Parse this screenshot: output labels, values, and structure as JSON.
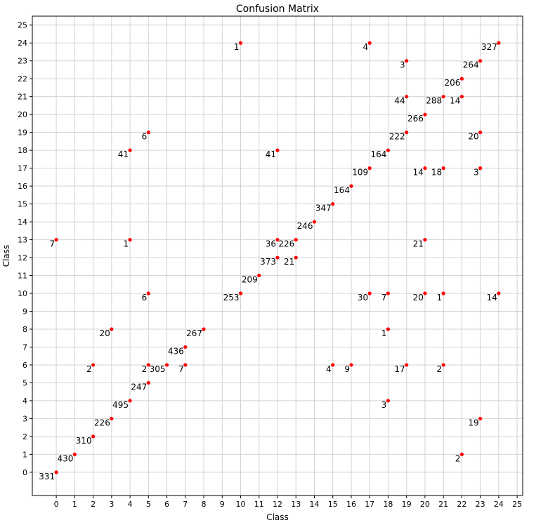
{
  "chart_data": {
    "type": "scatter",
    "title": "Confusion Matrix",
    "xlabel": "Class",
    "ylabel": "Class",
    "xlim": [
      -1.3,
      25.3
    ],
    "ylim": [
      -1.3,
      25.5
    ],
    "xticks": [
      0,
      1,
      2,
      3,
      4,
      5,
      6,
      7,
      8,
      9,
      10,
      11,
      12,
      13,
      14,
      15,
      16,
      17,
      18,
      19,
      20,
      21,
      22,
      23,
      24,
      25
    ],
    "yticks": [
      0,
      1,
      2,
      3,
      4,
      5,
      6,
      7,
      8,
      9,
      10,
      11,
      12,
      13,
      14,
      15,
      16,
      17,
      18,
      19,
      20,
      21,
      22,
      23,
      24,
      25
    ],
    "grid": true,
    "marker_color": "#ff0000",
    "points": [
      {
        "x": 0,
        "y": 0,
        "label": "331"
      },
      {
        "x": 1,
        "y": 1,
        "label": "430"
      },
      {
        "x": 2,
        "y": 2,
        "label": "310"
      },
      {
        "x": 3,
        "y": 3,
        "label": "226"
      },
      {
        "x": 4,
        "y": 4,
        "label": "495"
      },
      {
        "x": 5,
        "y": 5,
        "label": "247"
      },
      {
        "x": 6,
        "y": 6,
        "label": "305"
      },
      {
        "x": 7,
        "y": 7,
        "label": "436"
      },
      {
        "x": 8,
        "y": 8,
        "label": "267"
      },
      {
        "x": 10,
        "y": 10,
        "label": "253"
      },
      {
        "x": 11,
        "y": 11,
        "label": "209"
      },
      {
        "x": 12,
        "y": 12,
        "label": "373"
      },
      {
        "x": 13,
        "y": 13,
        "label": "226"
      },
      {
        "x": 14,
        "y": 14,
        "label": "246"
      },
      {
        "x": 15,
        "y": 15,
        "label": "347"
      },
      {
        "x": 16,
        "y": 16,
        "label": "164"
      },
      {
        "x": 17,
        "y": 17,
        "label": "109"
      },
      {
        "x": 18,
        "y": 18,
        "label": "164"
      },
      {
        "x": 19,
        "y": 19,
        "label": "222"
      },
      {
        "x": 20,
        "y": 20,
        "label": "266"
      },
      {
        "x": 21,
        "y": 21,
        "label": "288"
      },
      {
        "x": 22,
        "y": 22,
        "label": "206"
      },
      {
        "x": 23,
        "y": 23,
        "label": "264"
      },
      {
        "x": 24,
        "y": 24,
        "label": "327"
      },
      {
        "x": 10,
        "y": 24,
        "label": "1"
      },
      {
        "x": 17,
        "y": 24,
        "label": "4"
      },
      {
        "x": 19,
        "y": 23,
        "label": "3"
      },
      {
        "x": 19,
        "y": 21,
        "label": "44"
      },
      {
        "x": 22,
        "y": 21,
        "label": "14"
      },
      {
        "x": 5,
        "y": 19,
        "label": "6"
      },
      {
        "x": 23,
        "y": 19,
        "label": "20"
      },
      {
        "x": 4,
        "y": 18,
        "label": "41"
      },
      {
        "x": 12,
        "y": 18,
        "label": "41"
      },
      {
        "x": 20,
        "y": 17,
        "label": "14"
      },
      {
        "x": 21,
        "y": 17,
        "label": "18"
      },
      {
        "x": 23,
        "y": 17,
        "label": "3"
      },
      {
        "x": 0,
        "y": 13,
        "label": "7"
      },
      {
        "x": 4,
        "y": 13,
        "label": "1"
      },
      {
        "x": 12,
        "y": 13,
        "label": "36"
      },
      {
        "x": 20,
        "y": 13,
        "label": "21"
      },
      {
        "x": 13,
        "y": 12,
        "label": "21"
      },
      {
        "x": 5,
        "y": 10,
        "label": "6"
      },
      {
        "x": 17,
        "y": 10,
        "label": "30"
      },
      {
        "x": 18,
        "y": 10,
        "label": "7"
      },
      {
        "x": 20,
        "y": 10,
        "label": "20"
      },
      {
        "x": 21,
        "y": 10,
        "label": "1"
      },
      {
        "x": 24,
        "y": 10,
        "label": "14"
      },
      {
        "x": 3,
        "y": 8,
        "label": "20"
      },
      {
        "x": 18,
        "y": 8,
        "label": "1"
      },
      {
        "x": 2,
        "y": 6,
        "label": "2"
      },
      {
        "x": 5,
        "y": 6,
        "label": "2"
      },
      {
        "x": 7,
        "y": 6,
        "label": "7"
      },
      {
        "x": 15,
        "y": 6,
        "label": "4"
      },
      {
        "x": 16,
        "y": 6,
        "label": "9"
      },
      {
        "x": 19,
        "y": 6,
        "label": "17"
      },
      {
        "x": 21,
        "y": 6,
        "label": "2"
      },
      {
        "x": 18,
        "y": 4,
        "label": "3"
      },
      {
        "x": 23,
        "y": 3,
        "label": "19"
      },
      {
        "x": 22,
        "y": 1,
        "label": "2"
      }
    ]
  }
}
